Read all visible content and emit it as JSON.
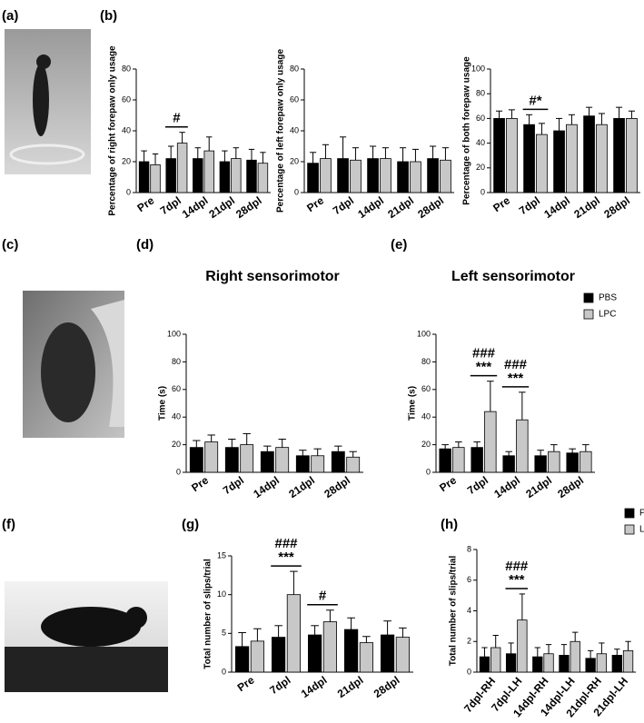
{
  "panel_labels": [
    "(a)",
    "(b)",
    "(c)",
    "(d)",
    "(e)",
    "(f)",
    "(g)",
    "(h)"
  ],
  "chart_data": [
    {
      "type": "bar",
      "ylabel": "Percentage of right forepaw only usage",
      "categories": [
        "Pre",
        "7dpl",
        "14dpl",
        "21dpl",
        "28dpl"
      ],
      "series": [
        {
          "color": "#000000",
          "values": [
            20,
            22,
            22,
            20,
            21
          ],
          "errors": [
            7,
            8,
            7,
            7,
            7
          ]
        },
        {
          "color": "#c8c8c8",
          "values": [
            18,
            32,
            27,
            22,
            19
          ],
          "errors": [
            7,
            7,
            9,
            7,
            7
          ]
        }
      ],
      "ylim": [
        0,
        80
      ],
      "yticks": [
        0,
        20,
        40,
        60,
        80
      ],
      "annotations": [
        {
          "category": "7dpl",
          "lines": [
            "#"
          ]
        }
      ]
    },
    {
      "type": "bar",
      "ylabel": "Percentage of left forepaw only usage",
      "categories": [
        "Pre",
        "7dpl",
        "14dpl",
        "21dpl",
        "28dpl"
      ],
      "series": [
        {
          "color": "#000000",
          "values": [
            19,
            22,
            22,
            20,
            22
          ],
          "errors": [
            7,
            14,
            8,
            9,
            8
          ]
        },
        {
          "color": "#c8c8c8",
          "values": [
            22,
            21,
            22,
            20,
            21
          ],
          "errors": [
            9,
            8,
            7,
            8,
            8
          ]
        }
      ],
      "ylim": [
        0,
        80
      ],
      "yticks": [
        0,
        20,
        40,
        60,
        80
      ],
      "annotations": []
    },
    {
      "type": "bar",
      "ylabel": "Percentage of both forepaw usage",
      "categories": [
        "Pre",
        "7dpl",
        "14dpl",
        "21dpl",
        "28dpl"
      ],
      "series": [
        {
          "color": "#000000",
          "values": [
            60,
            55,
            50,
            62,
            60
          ],
          "errors": [
            6,
            8,
            10,
            7,
            9
          ]
        },
        {
          "color": "#c8c8c8",
          "values": [
            60,
            47,
            55,
            55,
            60
          ],
          "errors": [
            7,
            9,
            8,
            9,
            6
          ]
        }
      ],
      "ylim": [
        0,
        100
      ],
      "yticks": [
        0,
        20,
        40,
        60,
        80,
        100
      ],
      "annotations": [
        {
          "category": "7dpl",
          "lines": [
            "#*"
          ]
        }
      ]
    },
    {
      "type": "bar",
      "title": "Right sensorimotor",
      "ylabel": "Time (s)",
      "categories": [
        "Pre",
        "7dpl",
        "14dpl",
        "21dpl",
        "28dpl"
      ],
      "series": [
        {
          "color": "#000000",
          "values": [
            18,
            18,
            15,
            12,
            15
          ],
          "errors": [
            5,
            6,
            4,
            4,
            4
          ]
        },
        {
          "color": "#c8c8c8",
          "values": [
            22,
            20,
            18,
            12,
            11
          ],
          "errors": [
            5,
            8,
            6,
            5,
            4
          ]
        }
      ],
      "ylim": [
        0,
        100
      ],
      "yticks": [
        0,
        20,
        40,
        60,
        80,
        100
      ],
      "annotations": []
    },
    {
      "type": "bar",
      "title": "Left sensorimotor",
      "ylabel": "Time (s)",
      "categories": [
        "Pre",
        "7dpl",
        "14dpl",
        "21dpl",
        "28dpl"
      ],
      "series": [
        {
          "name": "PBS",
          "color": "#000000",
          "values": [
            17,
            18,
            12,
            12,
            14
          ],
          "errors": [
            3,
            4,
            3,
            4,
            3
          ]
        },
        {
          "name": "LPC",
          "color": "#c8c8c8",
          "values": [
            18,
            44,
            38,
            15,
            15
          ],
          "errors": [
            4,
            22,
            20,
            5,
            5
          ]
        }
      ],
      "ylim": [
        0,
        100
      ],
      "yticks": [
        0,
        20,
        40,
        60,
        80,
        100
      ],
      "legend": "upper right",
      "annotations": [
        {
          "category": "7dpl",
          "lines": [
            "###",
            "***"
          ]
        },
        {
          "category": "14dpl",
          "lines": [
            "###",
            "***"
          ]
        }
      ]
    },
    {
      "type": "bar",
      "ylabel": "Total number of slips/trial",
      "categories": [
        "Pre",
        "7dpl",
        "14dpl",
        "21dpl",
        "28dpl"
      ],
      "series": [
        {
          "color": "#000000",
          "values": [
            3.3,
            4.5,
            4.8,
            5.5,
            4.8
          ],
          "errors": [
            1.8,
            1.5,
            1.2,
            1.5,
            1.8
          ]
        },
        {
          "color": "#c8c8c8",
          "values": [
            4.0,
            10,
            6.5,
            3.8,
            4.5
          ],
          "errors": [
            1.6,
            3.0,
            1.5,
            0.8,
            1.2
          ]
        }
      ],
      "ylim": [
        0,
        15
      ],
      "yticks": [
        0,
        5,
        10,
        15
      ],
      "annotations": [
        {
          "category": "7dpl",
          "lines": [
            "###",
            "***"
          ]
        },
        {
          "category": "14dpl",
          "lines": [
            "#"
          ]
        }
      ]
    },
    {
      "type": "bar",
      "ylabel": "Total number of slips/trial",
      "categories": [
        "7dpl-RH",
        "7dpl-LH",
        "14dpl-RH",
        "14dpl-LH",
        "21dpl-RH",
        "21dpl-LH"
      ],
      "series": [
        {
          "name": "PBS",
          "color": "#000000",
          "values": [
            1.0,
            1.2,
            1.0,
            1.1,
            0.9,
            1.1
          ],
          "errors": [
            0.6,
            0.7,
            0.6,
            0.7,
            0.5,
            0.4
          ]
        },
        {
          "name": "LPC",
          "color": "#c8c8c8",
          "values": [
            1.6,
            3.4,
            1.2,
            2.0,
            1.2,
            1.4
          ],
          "errors": [
            0.8,
            1.7,
            0.6,
            0.6,
            0.7,
            0.6
          ]
        }
      ],
      "ylim": [
        0,
        8
      ],
      "yticks": [
        0,
        2,
        4,
        6,
        8
      ],
      "legend": "upper right",
      "annotations": [
        {
          "category": "7dpl-LH",
          "lines": [
            "###",
            "***"
          ]
        }
      ]
    }
  ]
}
